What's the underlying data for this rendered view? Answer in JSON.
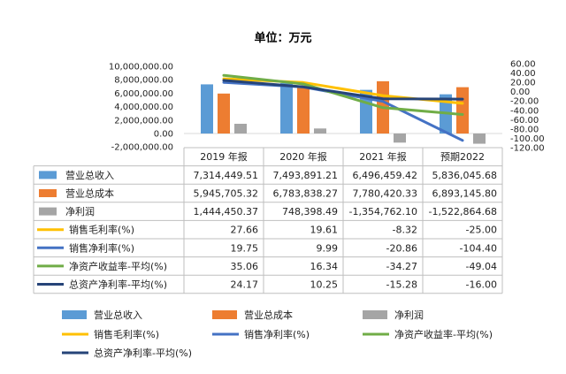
{
  "chart_data": {
    "type": "bar",
    "title": "单位：万元",
    "categories": [
      "2019 年报",
      "2020 年报",
      "2021 年报",
      "预期2022"
    ],
    "bar_series": [
      {
        "name": "营业总收入",
        "color": "#5B9BD5",
        "values": [
          7314449.51,
          7493891.21,
          6496459.42,
          5836045.68
        ],
        "labels": [
          "7,314,449.51",
          "7,493,891.21",
          "6,496,459.42",
          "5,836,045.68"
        ]
      },
      {
        "name": "营业总成本",
        "color": "#ED7D31",
        "values": [
          5945705.32,
          6783838.27,
          7780420.33,
          6893145.8
        ],
        "labels": [
          "5,945,705.32",
          "6,783,838.27",
          "7,780,420.33",
          "6,893,145.80"
        ]
      },
      {
        "name": "净利润",
        "color": "#A5A5A5",
        "values": [
          1444450.37,
          748398.49,
          -1354762.1,
          -1522864.68
        ],
        "labels": [
          "1,444,450.37",
          "748,398.49",
          "-1,354,762.10",
          "-1,522,864.68"
        ]
      }
    ],
    "line_series": [
      {
        "name": "销售毛利率(%)",
        "color": "#FFC000",
        "values": [
          27.66,
          19.61,
          -8.32,
          -25.0
        ],
        "labels": [
          "27.66",
          "19.61",
          "-8.32",
          "-25.00"
        ]
      },
      {
        "name": "销售净利率(%)",
        "color": "#4472C4",
        "values": [
          19.75,
          9.99,
          -20.86,
          -104.4
        ],
        "labels": [
          "19.75",
          "9.99",
          "-20.86",
          "-104.40"
        ]
      },
      {
        "name": "净资产收益率-平均(%)",
        "color": "#70AD47",
        "values": [
          35.06,
          16.34,
          -34.27,
          -49.04
        ],
        "labels": [
          "35.06",
          "16.34",
          "-34.27",
          "-49.04"
        ]
      },
      {
        "name": "总资产净利率-平均(%)",
        "color": "#264478",
        "values": [
          24.17,
          10.25,
          -15.28,
          -16.0
        ],
        "labels": [
          "24.17",
          "10.25",
          "-15.28",
          "-16.00"
        ]
      }
    ],
    "y_left": {
      "min": -2000000,
      "max": 10000000,
      "step": 2000000,
      "tick_labels": [
        "-2,000,000.00",
        "0.00",
        "2,000,000.00",
        "4,000,000.00",
        "6,000,000.00",
        "8,000,000.00",
        "10,000,000.00"
      ]
    },
    "y_right": {
      "min": -120,
      "max": 60,
      "step": 20,
      "tick_labels": [
        "-120.00",
        "-100.00",
        "-80.00",
        "-60.00",
        "-40.00",
        "-20.00",
        "0.00",
        "20.00",
        "40.00",
        "60.00"
      ]
    },
    "grid": false,
    "legend_position": "bottom",
    "data_table": true
  }
}
